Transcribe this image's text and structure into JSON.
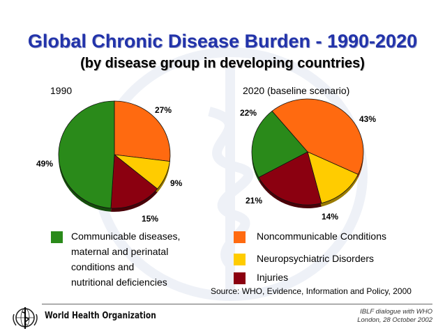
{
  "slide": {
    "title": "Global Chronic Disease Burden - 1990-2020",
    "subtitle": "(by disease group  in developing countries)"
  },
  "chart_data": [
    {
      "type": "pie",
      "title": "1990",
      "categories": [
        "Communicable diseases, maternal and perinatal conditions and nutritional deficiencies",
        "Noncommunicable Conditions",
        "Neuropsychiatric Disorders",
        "Injuries"
      ],
      "values": [
        49,
        27,
        9,
        15
      ],
      "labels": [
        "49%",
        "27%",
        "9%",
        "15%"
      ]
    },
    {
      "type": "pie",
      "title": "2020  (baseline scenario)",
      "categories": [
        "Communicable diseases, maternal and perinatal conditions and nutritional deficiencies",
        "Noncommunicable Conditions",
        "Neuropsychiatric Disorders",
        "Injuries"
      ],
      "values": [
        22,
        43,
        14,
        21
      ],
      "labels": [
        "22%",
        "43%",
        "14%",
        "21%"
      ]
    }
  ],
  "legend": {
    "communicable": {
      "lines": [
        "Communicable diseases,",
        "maternal and perinatal",
        "conditions and",
        "nutritional deficiencies"
      ],
      "color": "#2a8a1a"
    },
    "noncommunicable": {
      "label": "Noncommunicable Conditions",
      "color": "#ff6a10"
    },
    "neuropsychiatric": {
      "label": "Neuropsychiatric Disorders",
      "color": "#ffcc00"
    },
    "injuries": {
      "label": "Injuries",
      "color": "#8b0010"
    }
  },
  "source": "Source: WHO, Evidence, Information and Policy, 2000",
  "footer": {
    "organization": "World Health Organization",
    "event_line1": "IBLF dialogue with WHO",
    "event_line2": "London, 28 October 2002"
  }
}
